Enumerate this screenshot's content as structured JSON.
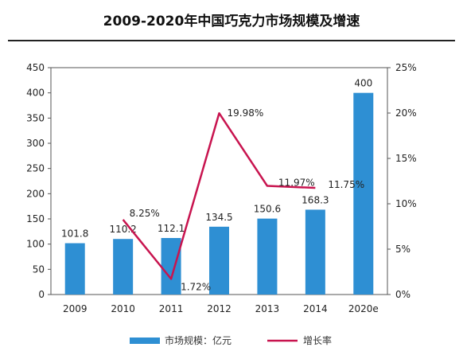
{
  "chart_data": {
    "type": "bar",
    "title": "2009-2020年中国巧克力市场规模及增速",
    "categories": [
      "2009",
      "2010",
      "2011",
      "2012",
      "2013",
      "2014",
      "2020e"
    ],
    "series": [
      {
        "name": "市场规模：亿元",
        "type": "bar",
        "axis": "left",
        "values": [
          101.8,
          110.2,
          112.1,
          134.5,
          150.6,
          168.3,
          400
        ],
        "value_labels": [
          "101.8",
          "110.2",
          "112.1",
          "134.5",
          "150.6",
          "168.3",
          "400"
        ],
        "color": "#2E8FD3"
      },
      {
        "name": "增长率",
        "type": "line",
        "axis": "right",
        "values": [
          null,
          8.25,
          1.72,
          19.98,
          11.97,
          11.75,
          null
        ],
        "value_labels": [
          "",
          "8.25%",
          "1.72%",
          "19.98%",
          "11.97%",
          "11.75%",
          ""
        ],
        "color": "#C8144F"
      }
    ],
    "y_left": {
      "ylim": [
        0,
        450
      ],
      "ticks": [
        "0",
        "50",
        "100",
        "150",
        "200",
        "250",
        "300",
        "350",
        "400",
        "450"
      ]
    },
    "y_right": {
      "ylim": [
        0,
        25
      ],
      "ticks": [
        "0%",
        "5%",
        "10%",
        "15%",
        "20%",
        "25%"
      ]
    },
    "legend": {
      "position": "bottom"
    },
    "grid": false
  }
}
